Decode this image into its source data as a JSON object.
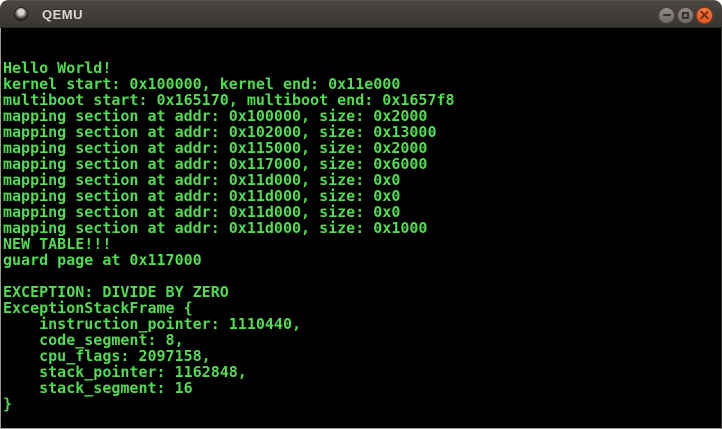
{
  "window": {
    "title": "QEMU",
    "controls": [
      {
        "name": "minimize"
      },
      {
        "name": "maximize"
      },
      {
        "name": "close"
      }
    ]
  },
  "colors": {
    "console_text": "#51dc51",
    "console_bg": "#000000",
    "titlebar_bg": "#403d38",
    "close_button": "#e8592a"
  },
  "console": {
    "rows": [
      "",
      "",
      "Hello World!",
      "kernel start: 0x100000, kernel end: 0x11e000",
      "multiboot start: 0x165170, multiboot end: 0x1657f8",
      "mapping section at addr: 0x100000, size: 0x2000",
      "mapping section at addr: 0x102000, size: 0x13000",
      "mapping section at addr: 0x115000, size: 0x2000",
      "mapping section at addr: 0x117000, size: 0x6000",
      "mapping section at addr: 0x11d000, size: 0x0",
      "mapping section at addr: 0x11d000, size: 0x0",
      "mapping section at addr: 0x11d000, size: 0x0",
      "mapping section at addr: 0x11d000, size: 0x1000",
      "NEW TABLE!!!",
      "guard page at 0x117000",
      "",
      "EXCEPTION: DIVIDE BY ZERO",
      "ExceptionStackFrame {",
      "    instruction_pointer: 1110440,",
      "    code_segment: 8,",
      "    cpu_flags: 2097158,",
      "    stack_pointer: 1162848,",
      "    stack_segment: 16",
      "}",
      ""
    ]
  }
}
